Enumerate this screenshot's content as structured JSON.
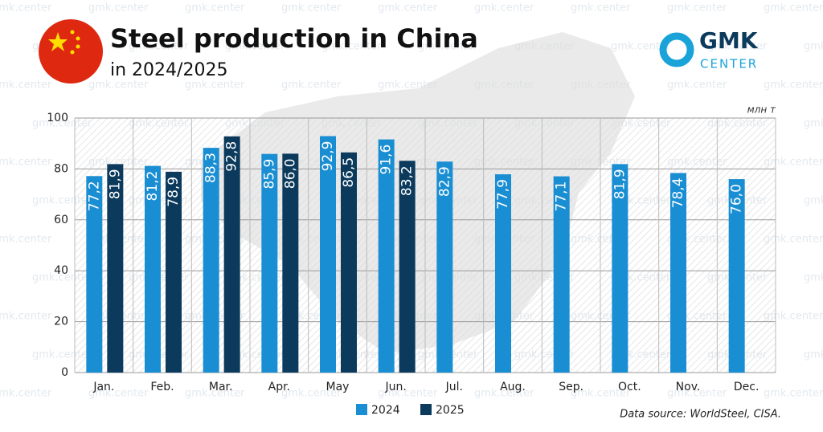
{
  "chart_data": {
    "type": "bar",
    "title": "Steel production in China",
    "subtitle": "in 2024/2025",
    "unit_label": "млн т",
    "source": "Data source: WorldSteel, CISA.",
    "logo": {
      "main": "GMK",
      "sub": "CENTER"
    },
    "watermark": "gmk.center",
    "categories": [
      "Jan.",
      "Feb.",
      "Mar.",
      "Apr.",
      "May",
      "Jun.",
      "Jul.",
      "Aug.",
      "Sep.",
      "Oct.",
      "Nov.",
      "Dec."
    ],
    "series": [
      {
        "name": "2024",
        "color": "#1a8ed3",
        "values": [
          77.2,
          81.2,
          88.3,
          85.9,
          92.9,
          91.6,
          82.9,
          77.9,
          77.1,
          81.9,
          78.4,
          76.0
        ],
        "value_labels": [
          "77,2",
          "81,2",
          "88,3",
          "85,9",
          "92,9",
          "91,6",
          "82,9",
          "77,9",
          "77,1",
          "81,9",
          "78,4",
          "76,0"
        ]
      },
      {
        "name": "2025",
        "color": "#0b3a5c",
        "values": [
          81.9,
          78.9,
          92.8,
          86.0,
          86.5,
          83.2,
          null,
          null,
          null,
          null,
          null,
          null
        ],
        "value_labels": [
          "81,9",
          "78,9",
          "92,8",
          "86,0",
          "86,5",
          "83,2",
          null,
          null,
          null,
          null,
          null,
          null
        ]
      }
    ],
    "ylim": [
      0,
      100
    ],
    "yticks": [
      0,
      20,
      40,
      60,
      80,
      100
    ],
    "grid": true
  }
}
